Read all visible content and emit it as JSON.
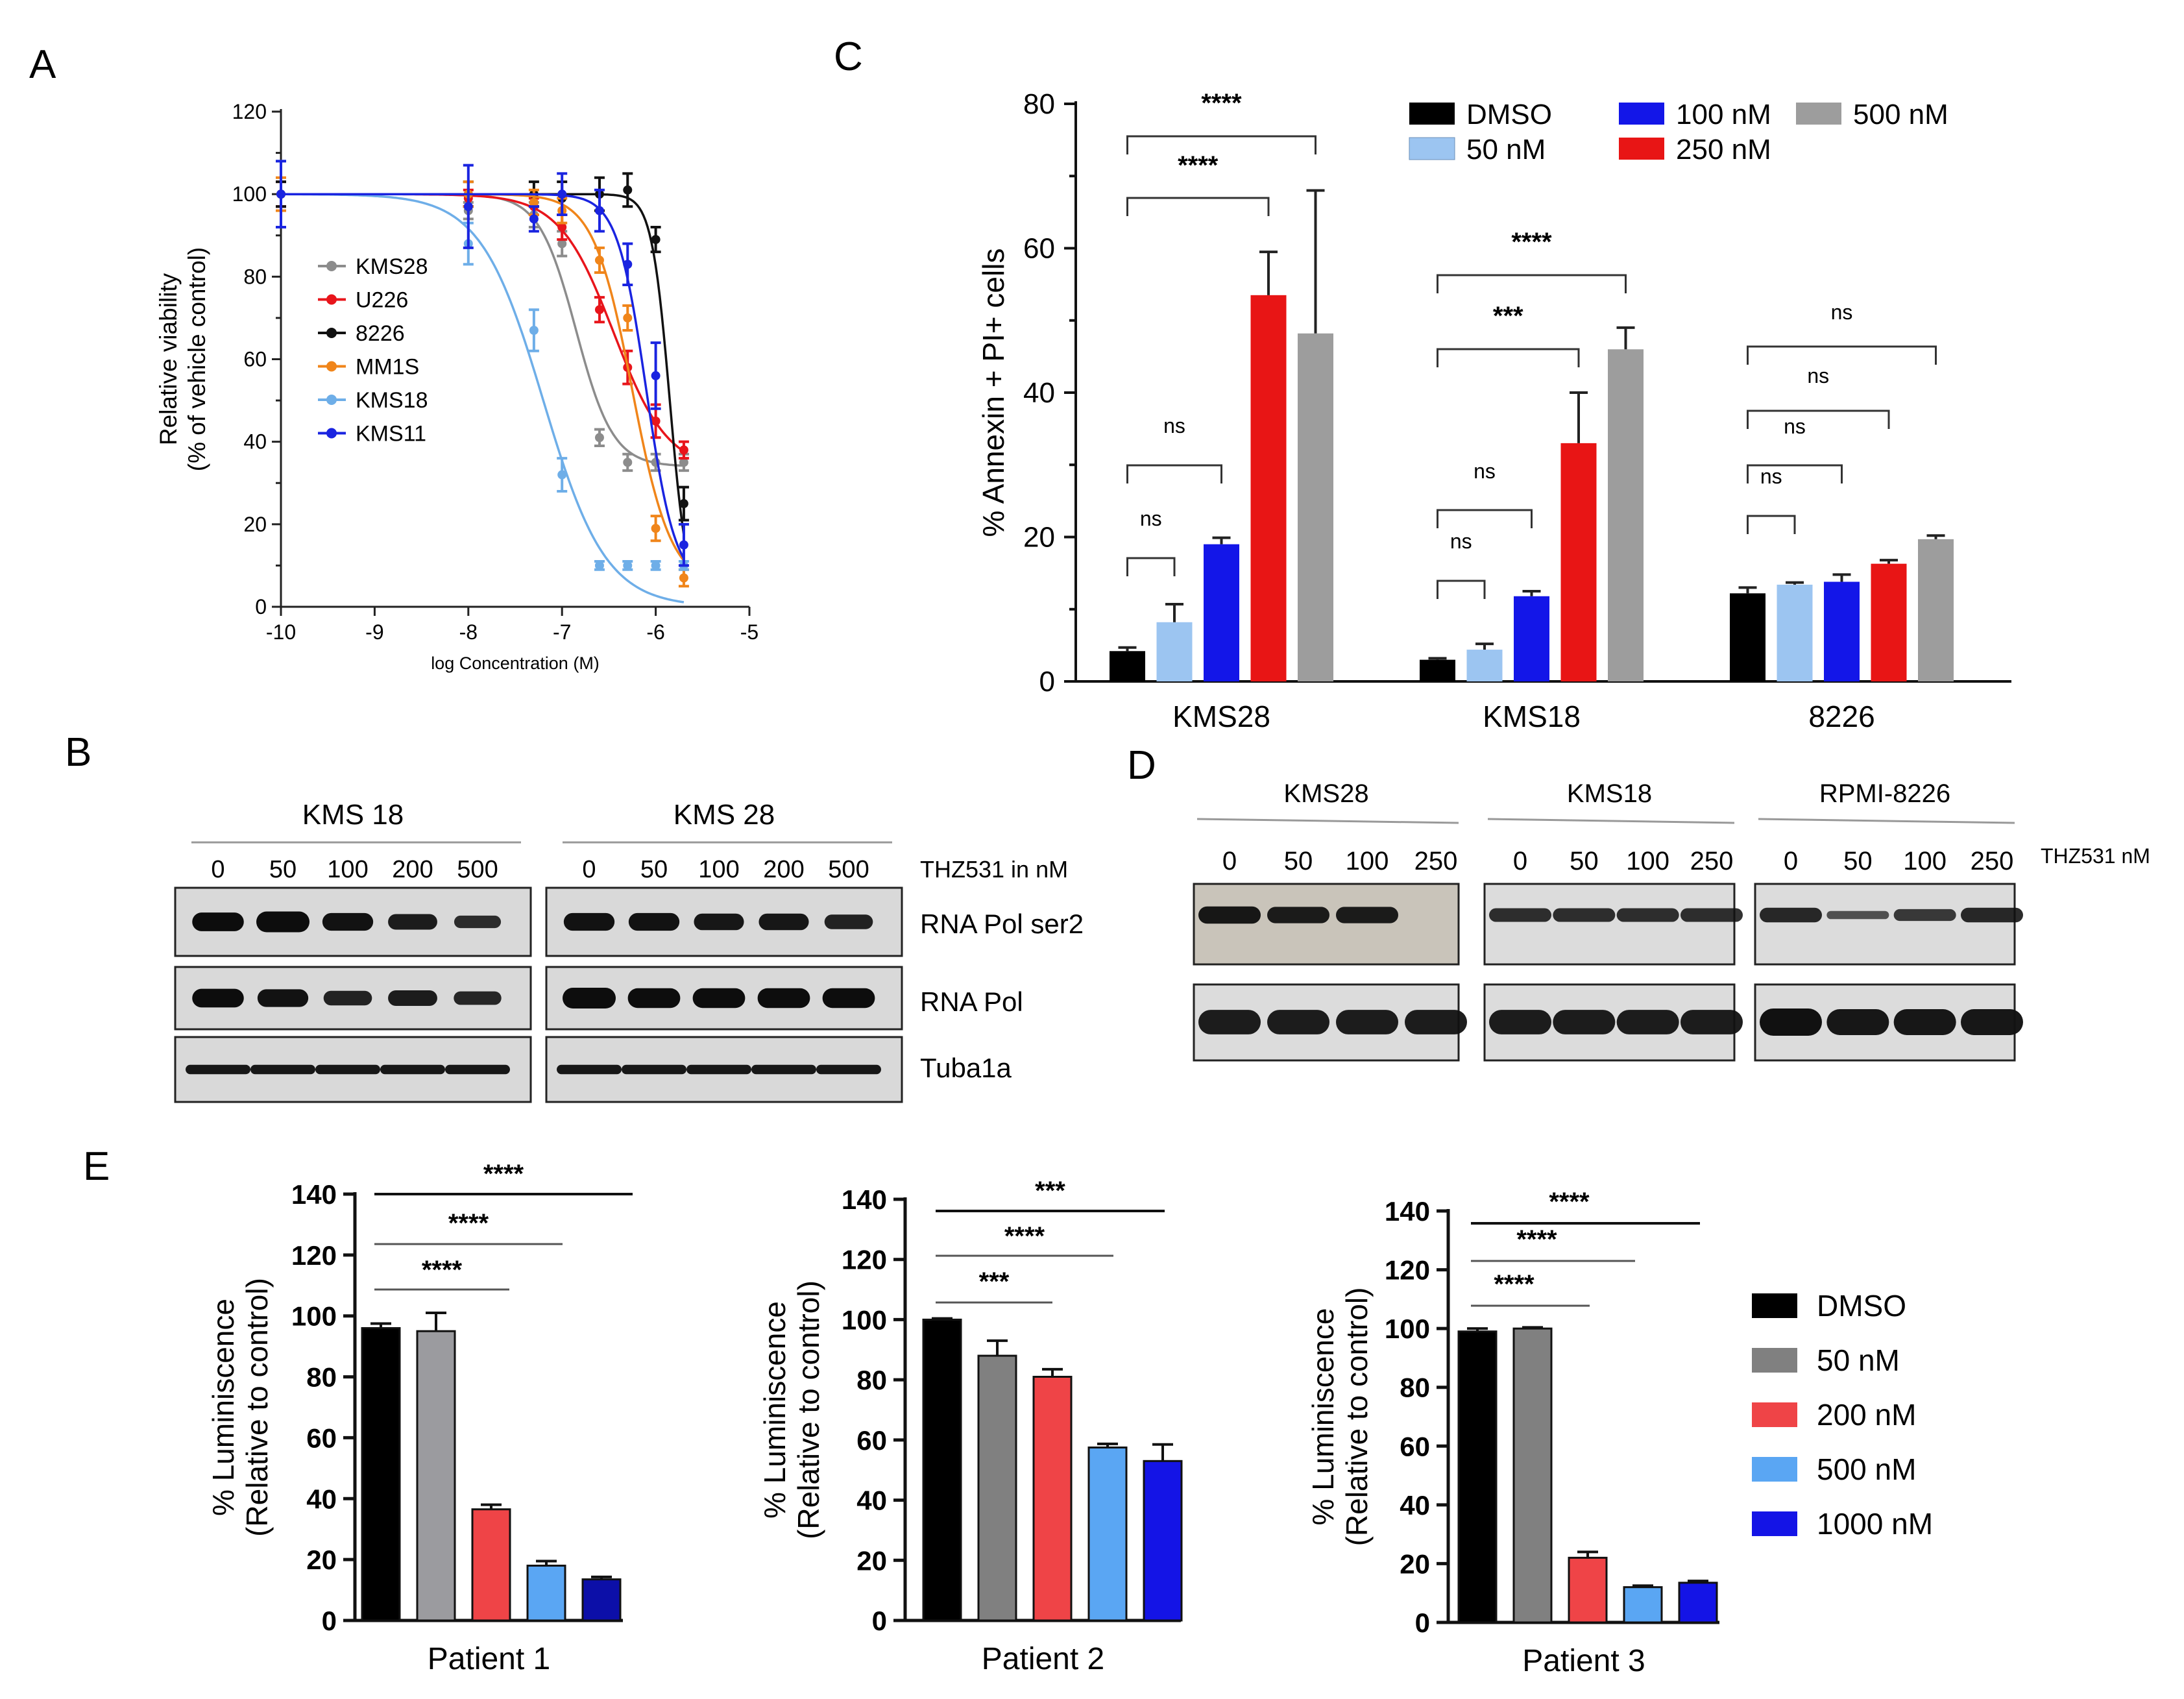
{
  "figure": {
    "panel_labels": [
      "A",
      "B",
      "C",
      "D",
      "E"
    ]
  },
  "chart_data": [
    {
      "id": "A",
      "type": "scatter",
      "title": "",
      "xlabel": "log Concentration (M)",
      "ylabel": [
        "Relative viability",
        "(% of vehicle control)"
      ],
      "xlim": [
        -10,
        -5
      ],
      "ylim": [
        0,
        120
      ],
      "x_ticks": [
        -10,
        -9,
        -8,
        -7,
        -6,
        -5
      ],
      "x_tick_labels": [
        "-10",
        "-9",
        "-8",
        "-7",
        "-6",
        "-5"
      ],
      "y_ticks": [
        0,
        20,
        40,
        60,
        80,
        100,
        120
      ],
      "y_tick_labels": [
        "0",
        "20",
        "40",
        "60",
        "80",
        "100",
        "120"
      ],
      "x": [
        -10,
        -8,
        -7.3,
        -7,
        -6.6,
        -6.3,
        -6,
        -5.7
      ],
      "series": [
        {
          "name": "KMS28",
          "color": "#8c8c8c",
          "values": [
            100,
            96,
            95,
            88,
            41,
            35,
            35,
            35
          ],
          "errors": [
            3,
            2,
            3,
            3,
            2,
            2,
            2,
            2
          ],
          "curve": {
            "top": 100,
            "bottom": 34,
            "logec50": -6.85,
            "hill": 2.2
          }
        },
        {
          "name": "U226",
          "color": "#e8151b",
          "values": [
            100,
            99,
            97,
            92,
            72,
            58,
            45,
            38
          ],
          "errors": [
            3,
            2,
            2,
            3,
            3,
            4,
            4,
            2
          ],
          "curve": {
            "top": 100,
            "bottom": 33,
            "logec50": -6.45,
            "hill": 1.5
          }
        },
        {
          "name": "8226",
          "color": "#111111",
          "values": [
            100,
            100,
            100,
            99,
            100,
            101,
            89,
            25
          ],
          "errors": [
            3,
            3,
            3,
            4,
            4,
            4,
            3,
            4
          ],
          "curve": {
            "top": 100,
            "bottom": 0,
            "logec50": -5.85,
            "hill": 4.5
          }
        },
        {
          "name": "MM1S",
          "color": "#f0851a",
          "values": [
            100,
            100,
            98,
            96,
            84,
            70,
            19,
            7
          ],
          "errors": [
            4,
            3,
            3,
            3,
            3,
            3,
            3,
            2
          ],
          "curve": {
            "top": 100,
            "bottom": 5,
            "logec50": -6.25,
            "hill": 2.1
          }
        },
        {
          "name": "KMS18",
          "color": "#6eaee8",
          "values": [
            100,
            88,
            67,
            32,
            10,
            10,
            10,
            10
          ],
          "errors": [
            8,
            5,
            5,
            4,
            1,
            1,
            1,
            1
          ],
          "curve": {
            "top": 100,
            "bottom": 0,
            "logec50": -7.2,
            "hill": 1.3
          }
        },
        {
          "name": "KMS11",
          "color": "#1a24e0",
          "values": [
            100,
            97,
            94,
            100,
            96,
            83,
            56,
            15
          ],
          "errors": [
            8,
            10,
            3,
            5,
            5,
            5,
            8,
            5
          ],
          "curve": {
            "top": 100,
            "bottom": 5,
            "logec50": -6.1,
            "hill": 2.8
          }
        }
      ]
    },
    {
      "id": "C",
      "type": "bar",
      "title": "",
      "xlabel": "",
      "ylabel": "% Annexin + PI+ cells",
      "ylim": [
        0,
        80
      ],
      "y_ticks": [
        0,
        20,
        40,
        60,
        80
      ],
      "y_tick_labels": [
        "0",
        "20",
        "40",
        "60",
        "80"
      ],
      "categories": [
        "KMS28",
        "KMS18",
        "8226"
      ],
      "series": [
        {
          "name": "DMSO",
          "color": "#000000",
          "values": [
            4.2,
            3.0,
            12.2
          ],
          "errors": [
            0.5,
            0.2,
            0.8
          ]
        },
        {
          "name": "50 nM",
          "color": "#9cc5f1",
          "values": [
            8.2,
            4.4,
            13.4
          ],
          "errors": [
            2.5,
            0.8,
            0.3
          ]
        },
        {
          "name": "100 nM",
          "color": "#1316e8",
          "values": [
            19.0,
            11.8,
            13.8
          ],
          "errors": [
            0.9,
            0.7,
            1.0
          ]
        },
        {
          "name": "250 nM",
          "color": "#e81515",
          "values": [
            53.5,
            33.0,
            16.3
          ],
          "errors": [
            6.0,
            7.0,
            0.5
          ]
        },
        {
          "name": "500 nM",
          "color": "#9d9d9d",
          "values": [
            48.2,
            46.0,
            19.7
          ],
          "errors": [
            19.8,
            3.0,
            0.5
          ]
        }
      ],
      "significance": [
        {
          "category": "KMS28",
          "from": 0,
          "to": 4,
          "label": "****"
        },
        {
          "category": "KMS28",
          "from": 0,
          "to": 3,
          "label": "****"
        },
        {
          "category": "KMS28",
          "from": 0,
          "to": 2,
          "label": "ns"
        },
        {
          "category": "KMS28",
          "from": 0,
          "to": 1,
          "label": "ns"
        },
        {
          "category": "KMS18",
          "from": 0,
          "to": 4,
          "label": "****"
        },
        {
          "category": "KMS18",
          "from": 0,
          "to": 3,
          "label": "***"
        },
        {
          "category": "KMS18",
          "from": 0,
          "to": 2,
          "label": "ns"
        },
        {
          "category": "KMS18",
          "from": 0,
          "to": 1,
          "label": "ns"
        },
        {
          "category": "8226",
          "from": 0,
          "to": 4,
          "label": "ns"
        },
        {
          "category": "8226",
          "from": 0,
          "to": 3,
          "label": "ns"
        },
        {
          "category": "8226",
          "from": 0,
          "to": 2,
          "label": "ns"
        },
        {
          "category": "8226",
          "from": 0,
          "to": 1,
          "label": "ns"
        }
      ]
    },
    {
      "id": "E1",
      "type": "bar",
      "title": "",
      "xlabel": "Patient 1",
      "ylabel": [
        "% Luminiscence",
        "(Relative to control)"
      ],
      "ylim": [
        0,
        140
      ],
      "y_ticks": [
        0,
        20,
        40,
        60,
        80,
        100,
        120,
        140
      ],
      "y_tick_labels": [
        "0",
        "20",
        "40",
        "60",
        "80",
        "100",
        "120",
        "140"
      ],
      "categories": [
        "DMSO",
        "50 nM",
        "200 nM",
        "500 nM",
        "1000 nM"
      ],
      "colors": [
        "#000000",
        "#9b9b9f",
        "#ef4447",
        "#5aa6f3",
        "#0c0fa8"
      ],
      "values": [
        96,
        95,
        36.5,
        18,
        13.5
      ],
      "errors": [
        1.5,
        6,
        1.5,
        1.5,
        0.8
      ],
      "significance": [
        {
          "to": 4,
          "label": "****"
        },
        {
          "to": 3,
          "label": "****"
        },
        {
          "to": 2,
          "label": "****"
        }
      ]
    },
    {
      "id": "E2",
      "type": "bar",
      "title": "",
      "xlabel": "Patient 2",
      "ylabel": [
        "% Luminiscence",
        "(Relative to control)"
      ],
      "ylim": [
        0,
        140
      ],
      "y_ticks": [
        0,
        20,
        40,
        60,
        80,
        100,
        120,
        140
      ],
      "y_tick_labels": [
        "0",
        "20",
        "40",
        "60",
        "80",
        "100",
        "120",
        "140"
      ],
      "categories": [
        "DMSO",
        "50 nM",
        "200 nM",
        "500 nM",
        "1000 nM"
      ],
      "colors": [
        "#000000",
        "#808080",
        "#ef4447",
        "#5aa6f3",
        "#1414e6"
      ],
      "values": [
        100,
        88,
        81,
        57.5,
        53
      ],
      "errors": [
        0.4,
        5,
        2.5,
        1.2,
        5.5
      ],
      "significance": [
        {
          "to": 4,
          "label": "***"
        },
        {
          "to": 3,
          "label": "****"
        },
        {
          "to": 2,
          "label": "***"
        }
      ]
    },
    {
      "id": "E3",
      "type": "bar",
      "title": "",
      "xlabel": "Patient 3",
      "ylabel": [
        "% Luminiscence",
        "(Relative to control)"
      ],
      "ylim": [
        0,
        140
      ],
      "y_ticks": [
        0,
        20,
        40,
        60,
        80,
        100,
        120,
        140
      ],
      "y_tick_labels": [
        "0",
        "20",
        "40",
        "60",
        "80",
        "100",
        "120",
        "140"
      ],
      "categories": [
        "DMSO",
        "50 nM",
        "200 nM",
        "500 nM",
        "1000 nM"
      ],
      "colors": [
        "#000000",
        "#808080",
        "#ef4447",
        "#5aa6f3",
        "#1414e6"
      ],
      "values": [
        99,
        100,
        22,
        12,
        13.5
      ],
      "errors": [
        1,
        0.4,
        2,
        0.5,
        0.6
      ],
      "significance": [
        {
          "to": 4,
          "label": "****"
        },
        {
          "to": 3,
          "label": "****"
        },
        {
          "to": 2,
          "label": "****"
        }
      ]
    }
  ],
  "legend_E": [
    {
      "name": "DMSO",
      "color": "#000000"
    },
    {
      "name": "50 nM",
      "color": "#808080"
    },
    {
      "name": "200 nM",
      "color": "#ef4447"
    },
    {
      "name": "500 nM",
      "color": "#5aa6f3"
    },
    {
      "name": "1000 nM",
      "color": "#1414e6"
    }
  ],
  "blots": {
    "B": {
      "groups": [
        {
          "title": "KMS 18",
          "lanes": [
            "0",
            "50",
            "100",
            "200",
            "500"
          ]
        },
        {
          "title": "KMS 28",
          "lanes": [
            "0",
            "50",
            "100",
            "200",
            "500"
          ]
        }
      ],
      "treatment": "THZ531 in nM",
      "rows": [
        "RNA Pol ser2",
        "RNA Pol",
        "Tuba1a"
      ],
      "bands": [
        [
          [
            0.9,
            1.0,
            0.85,
            0.75,
            0.6
          ],
          [
            0.85,
            0.85,
            0.8,
            0.8,
            0.7
          ]
        ],
        [
          [
            0.9,
            0.85,
            0.7,
            0.75,
            0.65
          ],
          [
            1.0,
            0.95,
            0.95,
            0.95,
            0.95
          ]
        ],
        [
          [
            0.8,
            0.8,
            0.8,
            0.8,
            0.8
          ],
          [
            0.8,
            0.8,
            0.8,
            0.8,
            0.8
          ]
        ]
      ]
    },
    "D": {
      "groups": [
        {
          "title": "KMS28",
          "lanes": [
            "0",
            "50",
            "100",
            "250"
          ]
        },
        {
          "title": "KMS18",
          "lanes": [
            "0",
            "50",
            "100",
            "250"
          ]
        },
        {
          "title": "RPMI-8226",
          "lanes": [
            "0",
            "50",
            "100",
            "250"
          ]
        }
      ],
      "treatment": "THZ531 nM",
      "bands": [
        [
          [
            0.95,
            0.9,
            0.9,
            0.0
          ],
          [
            0.75,
            0.75,
            0.75,
            0.75
          ],
          [
            0.8,
            0.45,
            0.65,
            0.8
          ]
        ],
        [
          [
            0.9,
            0.9,
            0.9,
            0.9
          ],
          [
            0.9,
            0.9,
            0.9,
            0.9
          ],
          [
            1.0,
            0.95,
            0.95,
            0.95
          ]
        ]
      ]
    }
  }
}
